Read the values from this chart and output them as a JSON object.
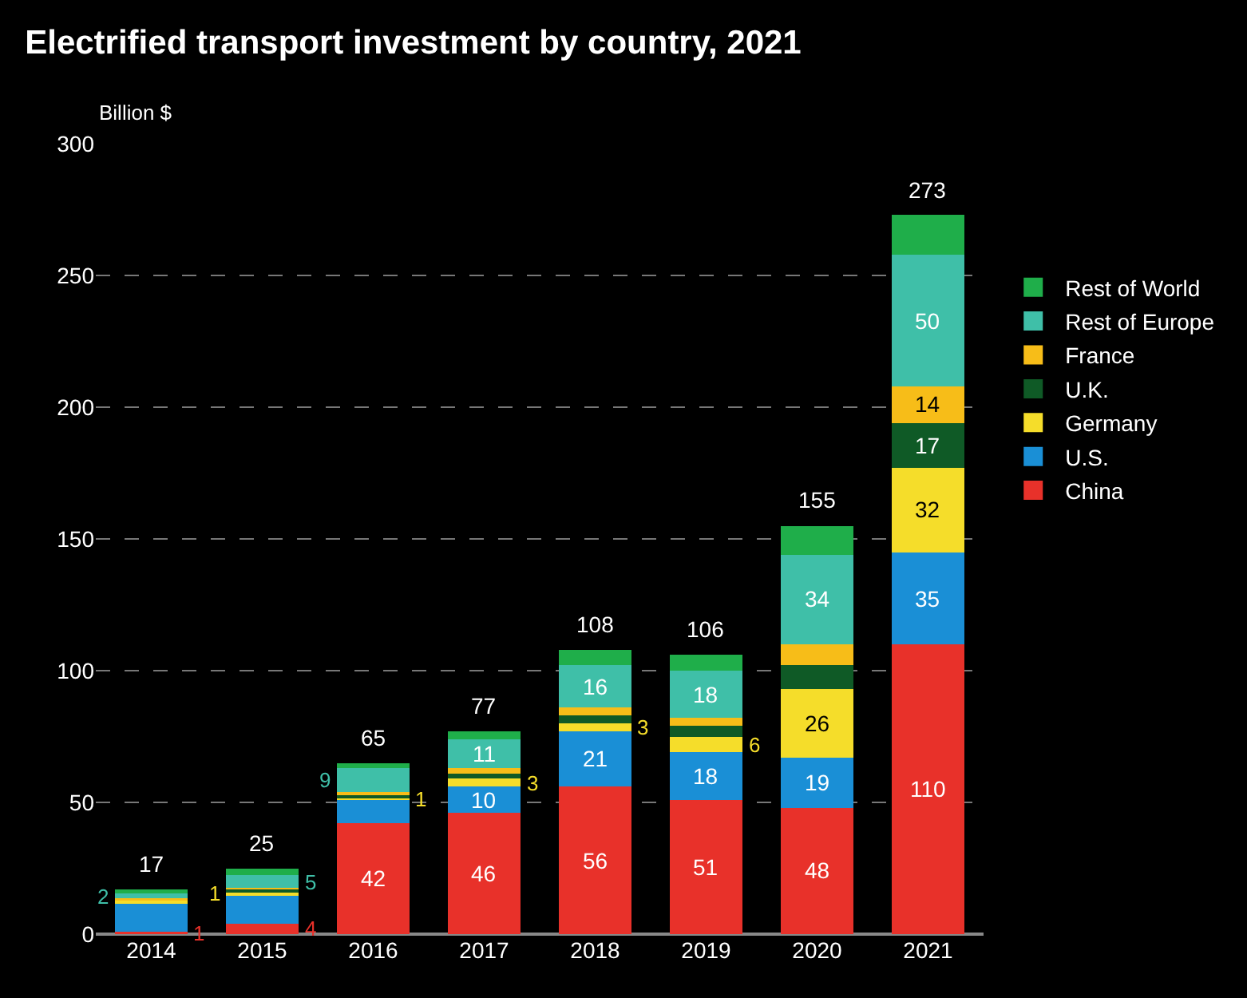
{
  "chart_data": {
    "type": "bar",
    "title": "Electrified transport investment by country, 2021",
    "ylabel": "Billion $",
    "categories": [
      "2014",
      "2015",
      "2016",
      "2017",
      "2018",
      "2019",
      "2020",
      "2021"
    ],
    "stacked": true,
    "ylim": [
      0,
      300
    ],
    "yticks": [
      0,
      50,
      100,
      150,
      200,
      250,
      300
    ],
    "grid": "y",
    "legend": "right",
    "series": [
      {
        "name": "China",
        "color": "#e8312a",
        "values": [
          1,
          4,
          42,
          46,
          56,
          51,
          48,
          110
        ],
        "value_labels": [
          "1",
          "4",
          "42",
          "46",
          "56",
          "51",
          "48",
          "110"
        ]
      },
      {
        "name": "U.S.",
        "color": "#1a8fd6",
        "values": [
          11,
          11,
          9,
          10,
          21,
          18,
          19,
          35
        ],
        "value_labels": [
          null,
          null,
          null,
          "10",
          "21",
          "18",
          "19",
          "35"
        ]
      },
      {
        "name": "Germany",
        "color": "#f5dd2a",
        "values": [
          1,
          1,
          1,
          3,
          3,
          6,
          26,
          32
        ],
        "value_labels": [
          null,
          "1",
          "1",
          "3",
          "3",
          "6",
          "26",
          "32"
        ]
      },
      {
        "name": "U.K.",
        "color": "#0f5a26",
        "values": [
          null,
          1,
          1,
          2,
          3,
          4,
          9,
          17
        ],
        "value_labels": [
          null,
          null,
          null,
          null,
          null,
          null,
          null,
          "17"
        ]
      },
      {
        "name": "France",
        "color": "#f7bd18",
        "values": [
          0.5,
          0.5,
          1,
          2,
          3,
          3,
          8,
          14
        ],
        "value_labels": [
          null,
          null,
          null,
          null,
          null,
          null,
          null,
          "14"
        ]
      },
      {
        "name": "Rest of Europe",
        "color": "#3fbfa8",
        "values": [
          2,
          5,
          9,
          11,
          16,
          18,
          34,
          50
        ],
        "value_labels": [
          "2",
          "5",
          "9",
          "11",
          "16",
          "18",
          "34",
          "50"
        ]
      },
      {
        "name": "Rest of World",
        "color": "#1fae4a",
        "values": [
          1.5,
          2.5,
          2,
          3,
          6,
          6,
          11,
          15
        ],
        "value_labels": [
          null,
          null,
          null,
          null,
          null,
          null,
          null,
          null
        ]
      }
    ],
    "totals": [
      "17",
      "25",
      "65",
      "77",
      "108",
      "106",
      "155",
      "273"
    ]
  }
}
